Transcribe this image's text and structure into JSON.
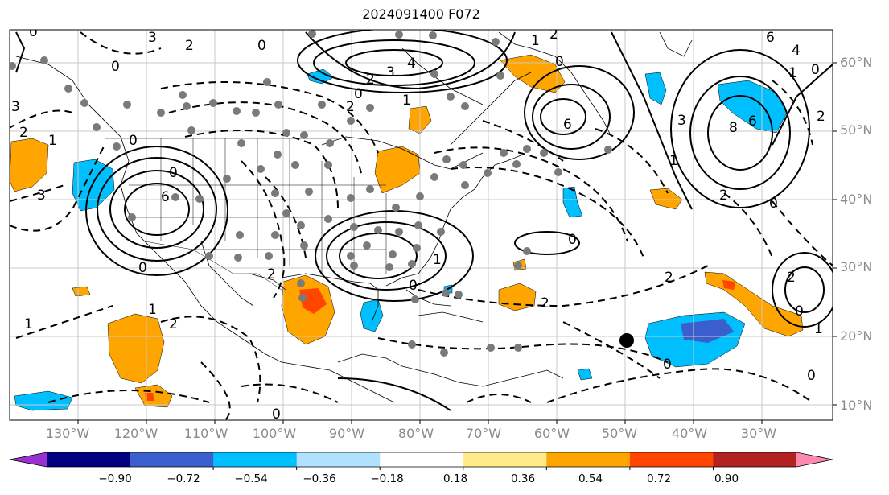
{
  "title": "2024091400 F072",
  "lon_labels": [
    "130°W",
    "120°W",
    "110°W",
    "100°W",
    "90°W",
    "80°W",
    "70°W",
    "60°W",
    "50°W",
    "40°W",
    "30°W"
  ],
  "lat_labels": [
    "60°N",
    "50°N",
    "40°N",
    "30°N",
    "20°N",
    "10°N"
  ],
  "colorbar": {
    "ticks": [
      "−0.90",
      "−0.72",
      "−0.54",
      "−0.36",
      "−0.18",
      "0.18",
      "0.36",
      "0.54",
      "0.72",
      "0.90"
    ],
    "colors": [
      "#9b30d0",
      "#000080",
      "#3a5fcd",
      "#00bfff",
      "#b0e2ff",
      "#ffffff",
      "#ffeb8a",
      "#ffa500",
      "#ff4500",
      "#b22222",
      "#ff88b0"
    ]
  },
  "contour_labels": [
    "0",
    "3",
    "2",
    "0",
    "0",
    "4",
    "3",
    "2",
    "0",
    "1",
    "2",
    "0",
    "6",
    "4",
    "1",
    "2",
    "3",
    "2",
    "1",
    "0",
    "6",
    "8",
    "6",
    "1",
    "3",
    "0",
    "2",
    "1",
    "6",
    "0",
    "0",
    "3",
    "2",
    "0",
    "0",
    "2",
    "1",
    "2",
    "1",
    "0",
    "2",
    "0",
    "2",
    "1",
    "0",
    "0",
    "0",
    "1",
    "2"
  ],
  "fill_palette": {
    "orange": "#ffa500",
    "red": "#ff4500",
    "cyan": "#00bfff",
    "blue": "#3a5fcd"
  }
}
